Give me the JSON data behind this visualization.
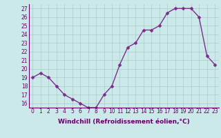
{
  "x": [
    0,
    1,
    2,
    3,
    4,
    5,
    6,
    7,
    8,
    9,
    10,
    11,
    12,
    13,
    14,
    15,
    16,
    17,
    18,
    19,
    20,
    21,
    22,
    23
  ],
  "y": [
    19,
    19.5,
    19,
    18,
    17,
    16.5,
    16,
    15.5,
    15.5,
    17,
    18,
    20.5,
    22.5,
    23,
    24.5,
    24.5,
    25,
    26.5,
    27,
    27,
    27,
    26,
    21.5,
    20.5
  ],
  "line_color": "#7b2d8b",
  "marker_color": "#7b2d8b",
  "bg_color": "#cce9e9",
  "grid_color": "#aacccc",
  "xlabel": "Windchill (Refroidissement éolien,°C)",
  "ylim": [
    15.5,
    27.5
  ],
  "xlim": [
    -0.5,
    23.5
  ],
  "yticks": [
    16,
    17,
    18,
    19,
    20,
    21,
    22,
    23,
    24,
    25,
    26,
    27
  ],
  "xticks": [
    0,
    1,
    2,
    3,
    4,
    5,
    6,
    7,
    8,
    9,
    10,
    11,
    12,
    13,
    14,
    15,
    16,
    17,
    18,
    19,
    20,
    21,
    22,
    23
  ],
  "xlabel_fontsize": 6.5,
  "tick_fontsize": 5.5,
  "line_width": 1.0,
  "marker_size": 2.5
}
